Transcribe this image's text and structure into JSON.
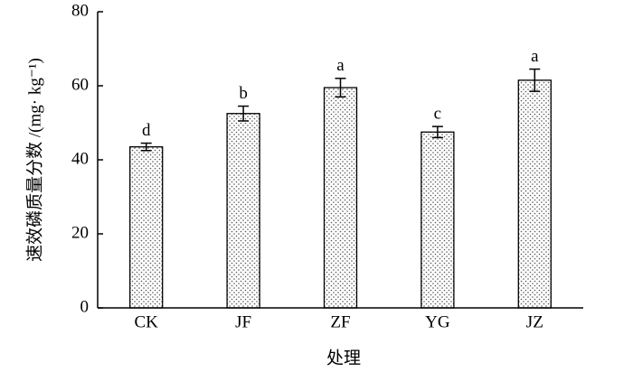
{
  "chart_data": {
    "type": "bar",
    "x_label": "处理",
    "y_label": "速效磷质量分数 /(mg· kg⁻¹)",
    "categories": [
      "CK",
      "JF",
      "ZF",
      "YG",
      "JZ"
    ],
    "values": [
      43.5,
      52.5,
      59.5,
      47.5,
      61.5
    ],
    "errors": [
      1,
      2,
      2.5,
      1.5,
      3
    ],
    "significance": [
      "d",
      "b",
      "a",
      "c",
      "a"
    ],
    "ylim": [
      0,
      80
    ],
    "yticks": [
      0,
      20,
      40,
      60,
      80
    ]
  }
}
